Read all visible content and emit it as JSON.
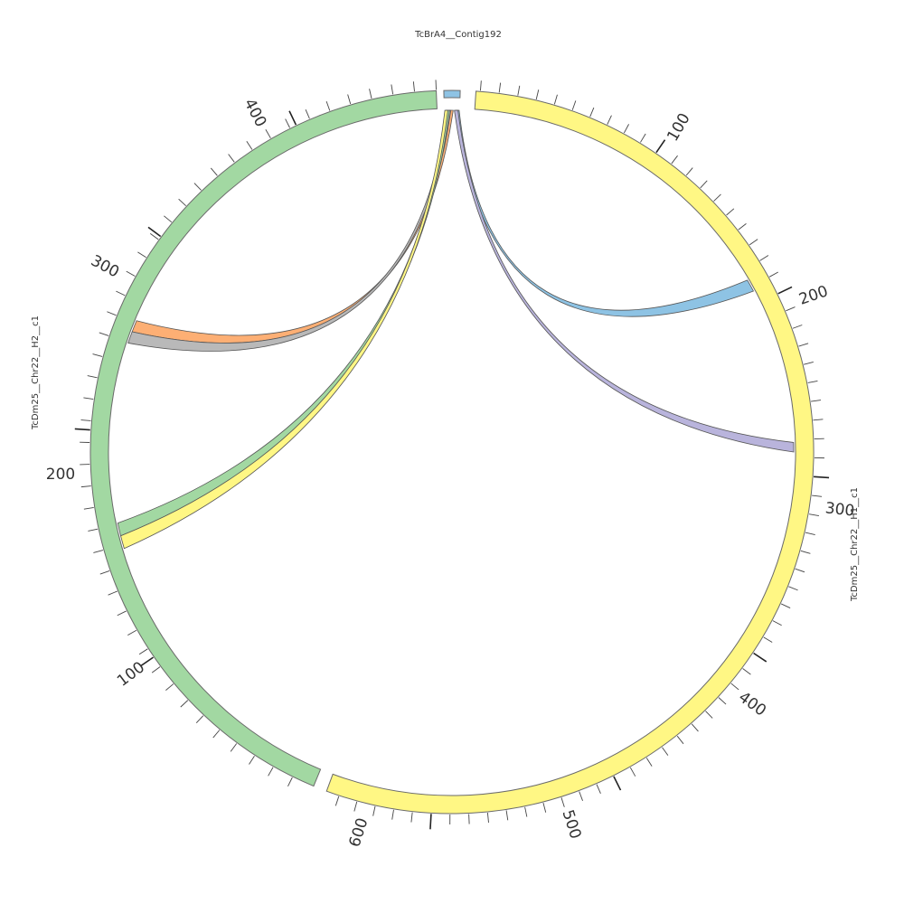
{
  "sequences": [
    {
      "id": "contig",
      "label": "TcBrA4__Contig192",
      "color": "#8ec3e4"
    },
    {
      "id": "h1",
      "label": "TcDm25__Chr22__H1__c1",
      "color": "#fff784"
    },
    {
      "id": "h2",
      "label": "TcDm25__Chr22__H2__c1",
      "color": "#a2d8a2"
    }
  ],
  "ticks": {
    "h1_major": [
      "100",
      "200",
      "300",
      "400",
      "500",
      "600"
    ],
    "h2_major": [
      "100",
      "200",
      "300",
      "400"
    ]
  },
  "links": [
    {
      "name": "link-contig-to-h1-at-190",
      "color": "#8ec3e4",
      "from": "TcBrA4__Contig192",
      "to": "TcDm25__Chr22__H1__c1"
    },
    {
      "name": "link-contig-to-h1-at-270",
      "color": "#b9b4dc",
      "from": "TcBrA4__Contig192",
      "to": "TcDm25__Chr22__H1__c1"
    },
    {
      "name": "link-contig-to-h2-at-260-orange",
      "color": "#fdaf74",
      "from": "TcBrA4__Contig192",
      "to": "TcDm25__Chr22__H2__c1"
    },
    {
      "name": "link-contig-to-h2-at-250-gray",
      "color": "#b9b9b9",
      "from": "TcBrA4__Contig192",
      "to": "TcDm25__Chr22__H2__c1"
    },
    {
      "name": "link-contig-to-h2-at-180-green",
      "color": "#a2d8a2",
      "from": "TcBrA4__Contig192",
      "to": "TcDm25__Chr22__H2__c1"
    },
    {
      "name": "link-contig-to-h2-at-175-yellow",
      "color": "#fff784",
      "from": "TcBrA4__Contig192",
      "to": "TcDm25__Chr22__H2__c1"
    }
  ]
}
